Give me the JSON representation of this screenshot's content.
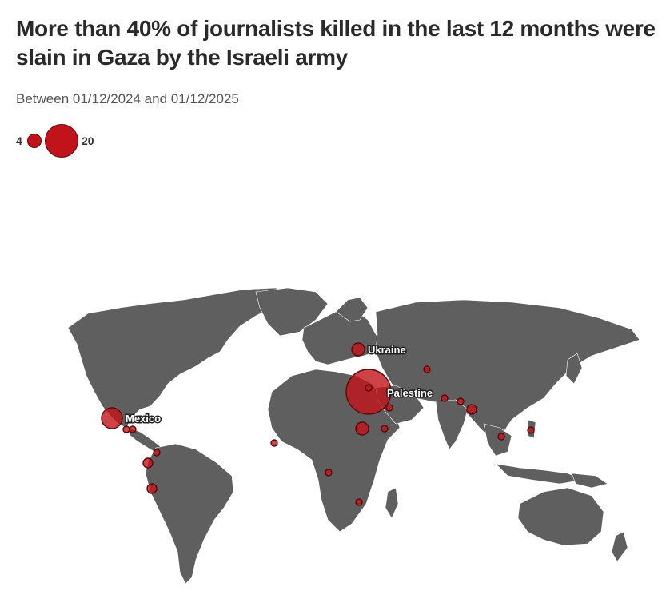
{
  "header": {
    "title": "More than 40% of journalists killed in the last 12 months were slain in Gaza by the Israeli army",
    "subtitle": "Between 01/12/2024 and 01/12/2025"
  },
  "legend": {
    "small_value": "4",
    "large_value": "20"
  },
  "colors": {
    "land": "#5f5f5f",
    "bubble": "#c0141a",
    "bubble_stroke": "#5a0a0c",
    "background": "#ffffff"
  },
  "labels": {
    "ukraine": "Ukraine",
    "palestine": "Palestine",
    "mexico": "Mexico"
  }
}
